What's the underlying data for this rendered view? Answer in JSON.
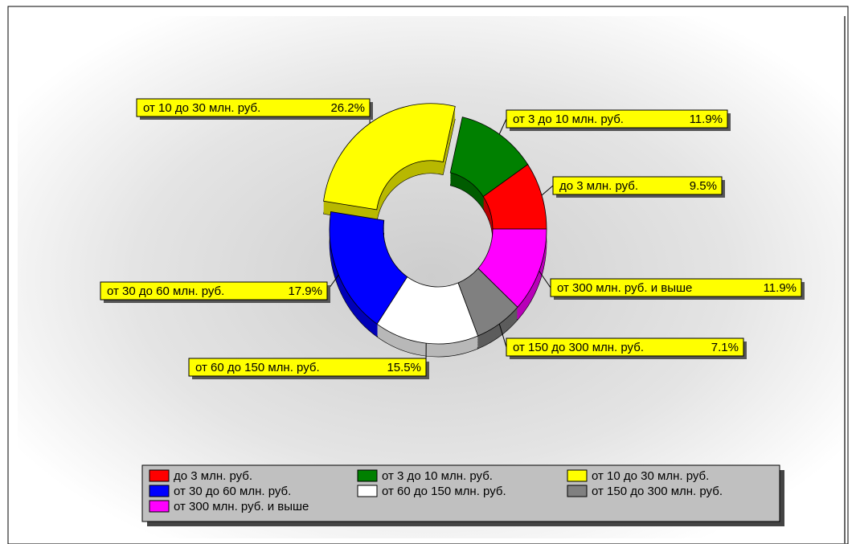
{
  "chart_data": {
    "type": "donut",
    "categories": [
      "до 3 млн. руб.",
      "от 3 до 10 млн. руб.",
      "от 10 до 30 млн. руб.",
      "от 30 до 60 млн. руб.",
      "от 60 до 150 млн. руб.",
      "от 150 до 300 млн. руб.",
      "от 300 млн. руб. и выше"
    ],
    "values": [
      9.5,
      11.9,
      26.2,
      17.9,
      15.5,
      7.1,
      11.9
    ],
    "value_labels": [
      "9.5%",
      "11.9%",
      "26.2%",
      "17.9%",
      "15.5%",
      "7.1%",
      "11.9%"
    ],
    "colors": [
      "#ff0000",
      "#008000",
      "#ffff00",
      "#0000ff",
      "#ffffff",
      "#808080",
      "#ff00ff"
    ],
    "exploded": [
      false,
      false,
      true,
      false,
      false,
      false,
      false
    ],
    "legend": "bottom"
  }
}
